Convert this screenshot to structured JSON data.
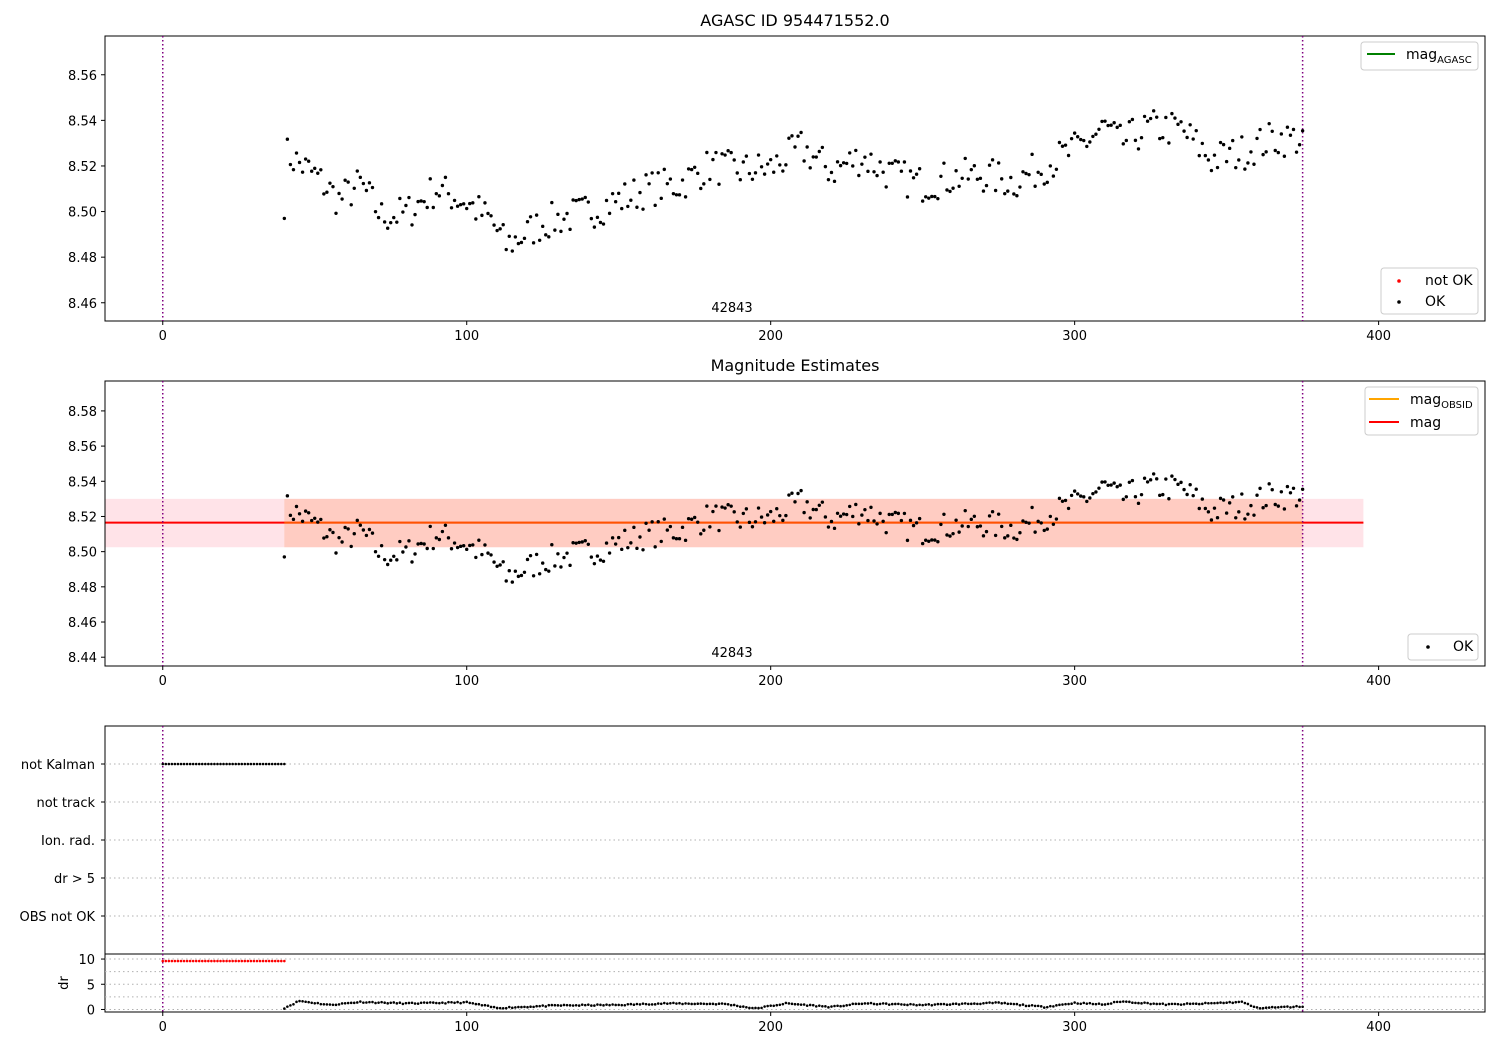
{
  "figure": {
    "title_top": "AGASC ID 954471552.0",
    "title_mid": "Magnitude Estimates",
    "obsid_annotation": "42843"
  },
  "colors": {
    "agasc_line": "#008000",
    "obsid_line": "#ffa500",
    "mag_line": "#ff0000",
    "not_ok_point": "#ff0000",
    "ok_point": "#000000",
    "band_outer": "#ffc0cb",
    "band_inner": "#ffa07a",
    "marker_line": "#800080",
    "grid": "#b0b0b0"
  },
  "legends": {
    "top_lines": [
      {
        "label": "mag",
        "sub": "AGASC",
        "color_key": "agasc_line"
      }
    ],
    "top_points": [
      {
        "label": "not OK",
        "color_key": "not_ok_point"
      },
      {
        "label": "OK",
        "color_key": "ok_point"
      }
    ],
    "mid_lines": [
      {
        "label": "mag",
        "sub": "OBSID",
        "color_key": "obsid_line"
      },
      {
        "label": "mag",
        "sub": "",
        "color_key": "mag_line"
      }
    ],
    "mid_points": [
      {
        "label": "OK",
        "color_key": "ok_point"
      }
    ]
  },
  "chart_data": [
    {
      "type": "scatter",
      "title": "AGASC ID 954471552.0",
      "xlim": [
        -19,
        435
      ],
      "ylim": [
        8.452,
        8.577
      ],
      "xticks": [
        0,
        100,
        200,
        300,
        400
      ],
      "yticks": [
        8.46,
        8.48,
        8.5,
        8.52,
        8.54,
        8.56
      ],
      "grid": false,
      "vlines_x": [
        0,
        375
      ],
      "annotation": {
        "text": "42843",
        "x": 187,
        "y": 8.455
      },
      "legend_positions": [
        "top-right",
        "bottom-right"
      ],
      "series": [
        {
          "name": "OK",
          "x_start": 40,
          "x_end": 375,
          "noise_seed": 7,
          "anchors": [
            [
              40,
              8.505
            ],
            [
              41,
              8.525
            ],
            [
              50,
              8.516
            ],
            [
              58,
              8.505
            ],
            [
              65,
              8.512
            ],
            [
              72,
              8.498
            ],
            [
              80,
              8.499
            ],
            [
              90,
              8.51
            ],
            [
              100,
              8.504
            ],
            [
              108,
              8.496
            ],
            [
              113,
              8.485
            ],
            [
              125,
              8.495
            ],
            [
              140,
              8.5
            ],
            [
              150,
              8.505
            ],
            [
              160,
              8.51
            ],
            [
              170,
              8.512
            ],
            [
              180,
              8.52
            ],
            [
              190,
              8.518
            ],
            [
              200,
              8.519
            ],
            [
              210,
              8.528
            ],
            [
              220,
              8.518
            ],
            [
              230,
              8.524
            ],
            [
              240,
              8.516
            ],
            [
              250,
              8.512
            ],
            [
              260,
              8.515
            ],
            [
              270,
              8.516
            ],
            [
              280,
              8.513
            ],
            [
              290,
              8.52
            ],
            [
              300,
              8.527
            ],
            [
              310,
              8.537
            ],
            [
              315,
              8.53
            ],
            [
              325,
              8.537
            ],
            [
              335,
              8.536
            ],
            [
              345,
              8.523
            ],
            [
              355,
              8.526
            ],
            [
              365,
              8.532
            ],
            [
              375,
              8.532
            ]
          ]
        },
        {
          "name": "not OK",
          "values": []
        }
      ]
    },
    {
      "type": "scatter",
      "title": "Magnitude Estimates",
      "xlim": [
        -19,
        435
      ],
      "ylim": [
        8.435,
        8.597
      ],
      "xticks": [
        0,
        100,
        200,
        300,
        400
      ],
      "yticks": [
        8.44,
        8.46,
        8.48,
        8.5,
        8.52,
        8.54,
        8.56,
        8.58
      ],
      "grid": false,
      "vlines_x": [
        0,
        375
      ],
      "annotation": {
        "text": "42843",
        "x": 187,
        "y": 8.438
      },
      "hlines": [
        {
          "name": "mag",
          "y": 8.5165,
          "x_range": [
            -19,
            395
          ]
        }
      ],
      "bands": [
        {
          "name": "mag range",
          "y_range": [
            8.5025,
            8.53
          ],
          "x_range": [
            -19,
            395
          ]
        },
        {
          "name": "mag_OBSID range",
          "y_range": [
            8.5025,
            8.53
          ],
          "x_range": [
            40,
            375
          ]
        }
      ],
      "legend_positions": [
        "top-right",
        "bottom-right"
      ],
      "series": [
        {
          "name": "OK",
          "same_as": "panel-1 OK"
        }
      ]
    },
    {
      "type": "scatter",
      "title": "",
      "xlim": [
        -19,
        435
      ],
      "categories": [
        "not Kalman",
        "not track",
        "Ion. rad.",
        "dr > 5",
        "OBS not OK"
      ],
      "grid": true,
      "vlines_x": [
        0,
        375
      ],
      "series": [
        {
          "name": "not Kalman",
          "x_start": 0,
          "x_end": 40
        },
        {
          "name": "not track",
          "values": []
        },
        {
          "name": "Ion. rad.",
          "values": []
        },
        {
          "name": "dr > 5",
          "values": []
        },
        {
          "name": "OBS not OK",
          "values": []
        }
      ]
    },
    {
      "type": "scatter",
      "ylabel": "dr",
      "xlim": [
        -19,
        435
      ],
      "ylim": [
        -0.5,
        11
      ],
      "xticks": [
        0,
        100,
        200,
        300,
        400
      ],
      "yticks": [
        0,
        5,
        10
      ],
      "grid": true,
      "vlines_x": [
        0,
        375
      ],
      "series": [
        {
          "name": "dr (red)",
          "x_start": 0,
          "x_end": 40,
          "value": 9.6
        },
        {
          "name": "dr",
          "x_start": 40,
          "x_end": 375,
          "noise_seed": 11,
          "anchors": [
            [
              40,
              0.3
            ],
            [
              45,
              1.7
            ],
            [
              55,
              0.9
            ],
            [
              65,
              1.5
            ],
            [
              80,
              1.2
            ],
            [
              100,
              1.4
            ],
            [
              110,
              0.3
            ],
            [
              130,
              0.8
            ],
            [
              150,
              0.9
            ],
            [
              165,
              1.2
            ],
            [
              185,
              1.1
            ],
            [
              195,
              0.2
            ],
            [
              205,
              1.2
            ],
            [
              220,
              0.5
            ],
            [
              230,
              1.2
            ],
            [
              250,
              0.9
            ],
            [
              275,
              1.3
            ],
            [
              290,
              0.5
            ],
            [
              300,
              1.3
            ],
            [
              310,
              1.0
            ],
            [
              315,
              1.6
            ],
            [
              330,
              1.0
            ],
            [
              340,
              1.1
            ],
            [
              355,
              1.5
            ],
            [
              360,
              0.3
            ],
            [
              375,
              0.6
            ]
          ]
        }
      ]
    }
  ]
}
